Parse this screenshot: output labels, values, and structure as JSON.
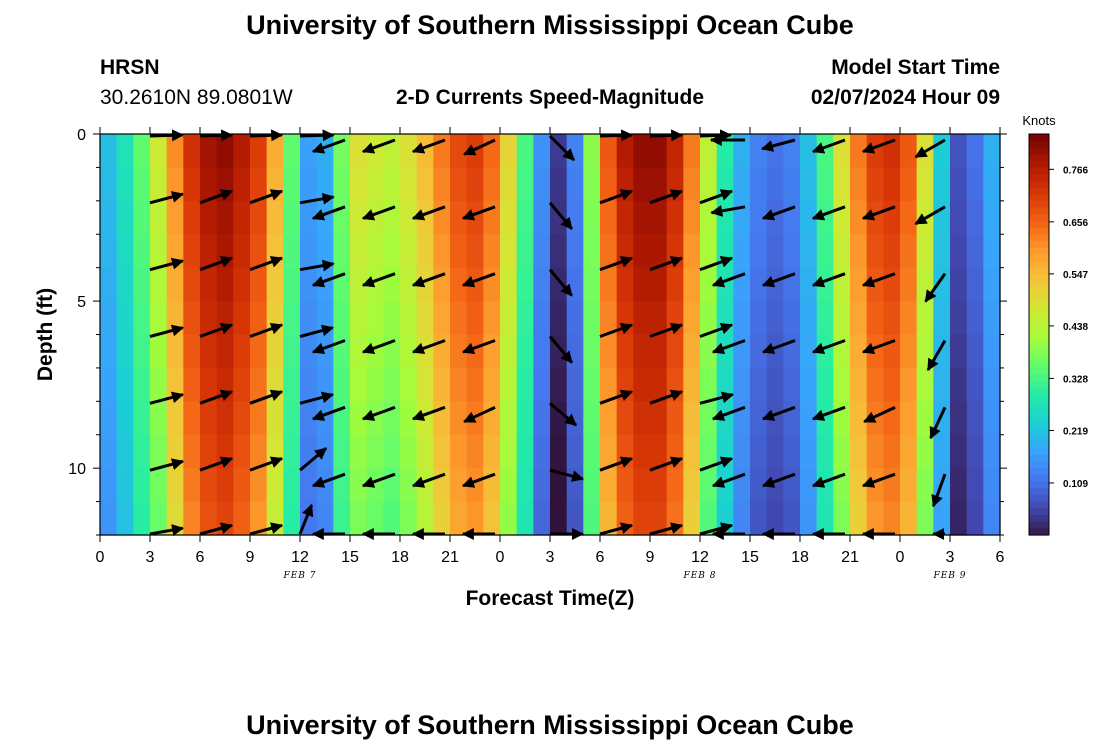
{
  "header": {
    "title": "University of Southern Mississippi Ocean Cube",
    "station": "HRSN",
    "coords": "30.2610N  89.0801W",
    "subtitle": "2-D Currents Speed-Magnitude",
    "model_label": "Model Start Time",
    "model_time": "02/07/2024 Hour 09"
  },
  "footer": {
    "title": "University of Southern Mississippi Ocean Cube"
  },
  "chart_data": {
    "type": "heatmap",
    "title": "2-D Currents Speed-Magnitude",
    "xlabel": "Forecast Time(Z)",
    "ylabel": "Depth (ft)",
    "x_hours_range": [
      0,
      54
    ],
    "ylim": [
      0,
      12
    ],
    "x_ticks": [
      0,
      3,
      6,
      9,
      12,
      15,
      18,
      21,
      24,
      27,
      30,
      33,
      36,
      39,
      42,
      45,
      48,
      51,
      54
    ],
    "x_tick_labels": [
      "0",
      "3",
      "6",
      "9",
      "12",
      "15",
      "18",
      "21",
      "0",
      "3",
      "6",
      "9",
      "12",
      "15",
      "18",
      "21",
      "0",
      "3",
      "6"
    ],
    "y_ticks": [
      0,
      5,
      10
    ],
    "y_tick_labels": [
      "0",
      "5",
      "10"
    ],
    "date_labels": [
      {
        "hour": 12,
        "text": "FEB 7"
      },
      {
        "hour": 36,
        "text": "FEB 8"
      },
      {
        "hour": 51,
        "text": "FEB 9"
      }
    ],
    "colorbar": {
      "label": "Knots",
      "min": 0.0,
      "max": 0.84,
      "tick_values": [
        0.109,
        0.219,
        0.328,
        0.438,
        0.547,
        0.656,
        0.766
      ],
      "tick_labels": [
        "0.109",
        "0.219",
        "0.328",
        "0.438",
        "0.547",
        "0.656",
        "0.766"
      ],
      "colors": [
        "#30123b",
        "#4145ab",
        "#4675ed",
        "#39a2fc",
        "#1bcfd4",
        "#24eca6",
        "#61fc6c",
        "#a4fc3b",
        "#d1e834",
        "#f3c63a",
        "#fe9b2d",
        "#f36315",
        "#d93807",
        "#b11901",
        "#7a0403"
      ]
    },
    "x_hours": [
      0,
      1,
      2,
      3,
      4,
      5,
      6,
      7,
      8,
      9,
      10,
      11,
      12,
      13,
      14,
      15,
      16,
      17,
      18,
      19,
      20,
      21,
      22,
      23,
      24,
      25,
      26,
      27,
      28,
      29,
      30,
      31,
      32,
      33,
      34,
      35,
      36,
      37,
      38,
      39,
      40,
      41,
      42,
      43,
      44,
      45,
      46,
      47,
      48,
      49,
      50,
      51,
      52,
      53
    ],
    "surface_speed": [
      0.22,
      0.28,
      0.36,
      0.48,
      0.62,
      0.74,
      0.8,
      0.82,
      0.78,
      0.72,
      0.58,
      0.36,
      0.18,
      0.2,
      0.38,
      0.5,
      0.48,
      0.46,
      0.5,
      0.56,
      0.64,
      0.7,
      0.72,
      0.66,
      0.52,
      0.34,
      0.16,
      0.05,
      0.14,
      0.4,
      0.68,
      0.78,
      0.82,
      0.82,
      0.76,
      0.64,
      0.46,
      0.3,
      0.2,
      0.14,
      0.12,
      0.14,
      0.22,
      0.34,
      0.5,
      0.64,
      0.72,
      0.74,
      0.68,
      0.5,
      0.24,
      0.08,
      0.12,
      0.2
    ],
    "arrow_rows_depth_ft": [
      0,
      2,
      4,
      6,
      8,
      10,
      12
    ],
    "arrow_cols_hours": [
      3,
      6,
      9,
      12,
      13.5,
      16.5,
      19.5,
      22.5,
      27,
      30,
      33,
      36,
      37.5,
      40.5,
      43.5,
      46.5,
      49.5
    ],
    "arrow_direction_deg": [
      [
        15,
        20,
        20,
        10,
        200,
        200,
        200,
        205,
        315,
        20,
        20,
        25,
        180,
        195,
        200,
        200,
        210
      ],
      [
        15,
        20,
        20,
        10,
        200,
        200,
        200,
        200,
        310,
        20,
        20,
        20,
        190,
        200,
        200,
        200,
        210
      ],
      [
        15,
        20,
        20,
        10,
        200,
        200,
        200,
        200,
        310,
        20,
        20,
        20,
        200,
        200,
        200,
        200,
        235
      ],
      [
        15,
        20,
        20,
        15,
        200,
        200,
        200,
        200,
        310,
        20,
        20,
        20,
        200,
        200,
        200,
        200,
        240
      ],
      [
        15,
        20,
        20,
        15,
        200,
        200,
        200,
        205,
        320,
        20,
        20,
        15,
        200,
        200,
        200,
        205,
        245
      ],
      [
        15,
        20,
        20,
        40,
        200,
        200,
        200,
        200,
        345,
        20,
        20,
        20,
        200,
        200,
        200,
        200,
        250
      ],
      [
        15,
        20,
        20,
        70,
        200,
        200,
        200,
        200,
        345,
        20,
        20,
        20,
        200,
        200,
        200,
        200,
        250
      ]
    ]
  }
}
